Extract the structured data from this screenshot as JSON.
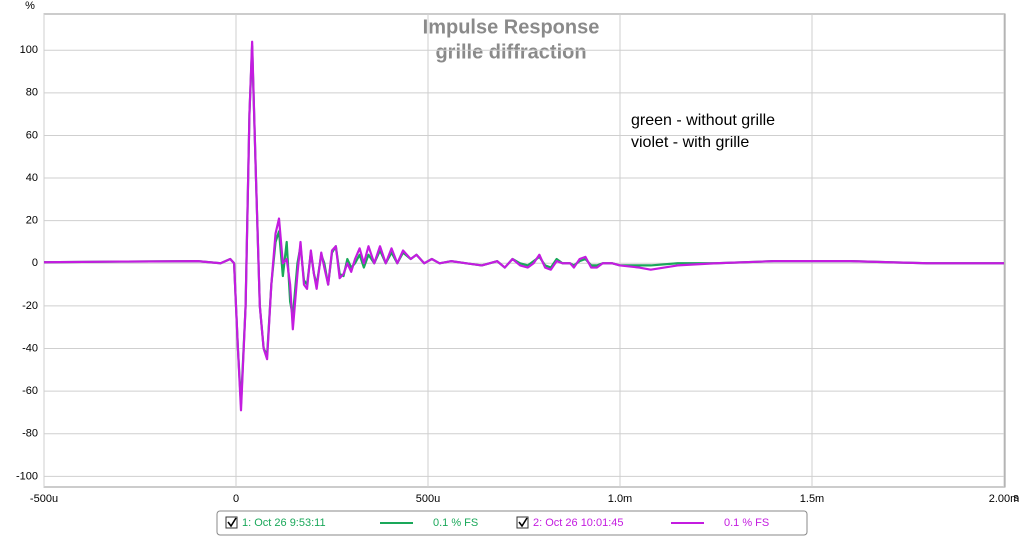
{
  "chart_data": {
    "type": "line",
    "title": "Impulse Response",
    "subtitle": "grille diffraction",
    "ylabel": "%",
    "xunit": "s",
    "annotations": [
      "green - without grille",
      "violet - with grille"
    ],
    "xlim": [
      -0.0005,
      0.002
    ],
    "ylim": [
      -105,
      117
    ],
    "xticks": [
      {
        "value": -0.0005,
        "label": "-500u"
      },
      0,
      {
        "value": 0.0005,
        "label": "500u"
      },
      {
        "value": 0.001,
        "label": "1.0m"
      },
      {
        "value": 0.0015,
        "label": "1.5m"
      },
      {
        "value": 0.002,
        "label": "2.00m"
      }
    ],
    "yticks": [
      100,
      80,
      60,
      40,
      20,
      0,
      -20,
      -40,
      -60,
      -80,
      -100
    ],
    "grid": true,
    "legend": "bottom",
    "x": [
      -0.0005,
      -0.0003,
      -0.0001,
      -4e-05,
      -1.5e-05,
      -5e-06,
      5e-06,
      1.3e-05,
      2.5e-05,
      3.5e-05,
      4.2e-05,
      5.2e-05,
      6.2e-05,
      7.2e-05,
      8.1e-05,
      9.2e-05,
      0.000103,
      0.000112,
      0.000122,
      0.000132,
      0.000141,
      0.000148,
      0.00016,
      0.000168,
      0.000177,
      0.000185,
      0.000195,
      0.000203,
      0.00021,
      0.000222,
      0.00023,
      0.00024,
      0.00025,
      0.00026,
      0.00027,
      0.00028,
      0.00029,
      0.0003,
      0.00031,
      0.000322,
      0.000333,
      0.000345,
      0.00036,
      0.000375,
      0.00039,
      0.000405,
      0.00042,
      0.000435,
      0.000455,
      0.00047,
      0.00049,
      0.00051,
      0.00053,
      0.00056,
      0.0006,
      0.00064,
      0.00068,
      0.0007,
      0.00072,
      0.00074,
      0.00076,
      0.000775,
      0.00079,
      0.000805,
      0.00082,
      0.000835,
      0.00085,
      0.00087,
      0.00088,
      0.000895,
      0.00091,
      0.000925,
      0.00094,
      0.000955,
      0.00098,
      0.001,
      0.00105,
      0.00108,
      0.00115,
      0.00125,
      0.0014,
      0.0016,
      0.0018,
      0.002
    ],
    "series": [
      {
        "name": "1: Oct 26 9:53:11",
        "scale": "0.1 % FS",
        "color": "#1aa85a",
        "values": [
          0.5,
          0.8,
          1,
          0,
          2,
          0,
          -40,
          -66,
          -20,
          70,
          102,
          40,
          -20,
          -40,
          -43,
          -10,
          10,
          15,
          -6,
          10,
          -18,
          -25,
          0,
          8,
          -8,
          -10,
          5,
          -5,
          -10,
          4,
          0,
          -10,
          5,
          8,
          -5,
          -6,
          2,
          -2,
          0,
          4,
          -2,
          4,
          0,
          6,
          0,
          5,
          0,
          5,
          2,
          4,
          0,
          2,
          0,
          1,
          0,
          -1,
          1,
          -2,
          2,
          0,
          -1,
          1,
          3,
          -1,
          -2,
          2,
          0,
          0,
          -1,
          1,
          2,
          -1,
          -1,
          0,
          0,
          -1,
          -1,
          -1,
          0,
          0,
          1,
          1,
          0,
          0
        ]
      },
      {
        "name": "2: Oct 26 10:01:45",
        "scale": "0.1 % FS",
        "color": "#c41ce0",
        "values": [
          0.5,
          0.8,
          1,
          0,
          2,
          0,
          -40,
          -69,
          -20,
          70,
          104,
          40,
          -20,
          -40,
          -45,
          -10,
          14,
          21,
          0,
          2,
          -10,
          -31,
          -5,
          10,
          -10,
          -12,
          6,
          -5,
          -12,
          5,
          -2,
          -10,
          6,
          8,
          -7,
          -5,
          0,
          -4,
          2,
          7,
          0,
          8,
          0,
          8,
          0,
          7,
          0,
          6,
          2,
          4,
          0,
          2,
          0,
          1,
          0,
          -1,
          1,
          -2,
          2,
          -1,
          -2,
          0,
          4,
          -2,
          -3,
          1,
          0,
          0,
          -2,
          2,
          3,
          -2,
          -2,
          0,
          0,
          -1,
          -2,
          -3,
          -1,
          0,
          1,
          1,
          0,
          0
        ]
      }
    ]
  }
}
